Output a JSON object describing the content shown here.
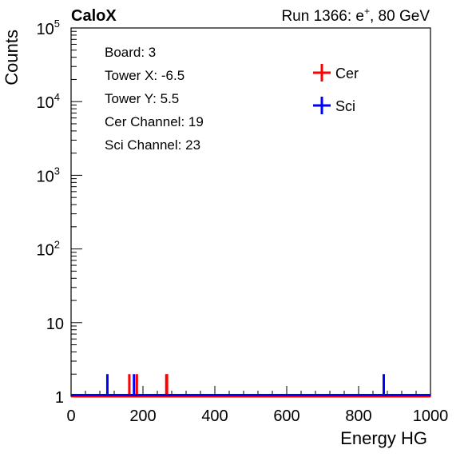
{
  "header": {
    "brand": "CaloX",
    "run_label": "Run 1366: e",
    "run_superscript": "+",
    "run_suffix": ", 80 GeV"
  },
  "info_box": {
    "lines": [
      "Board: 3",
      "Tower X: -6.5",
      "Tower Y: 5.5",
      "Cer Channel: 19",
      "Sci Channel: 23"
    ]
  },
  "chart_data": {
    "type": "bar",
    "title": "",
    "xlabel": "Energy HG",
    "ylabel": "Counts",
    "xlim": [
      0,
      1000
    ],
    "ylim": [
      1,
      100000
    ],
    "yscale": "log",
    "grid": false,
    "legend_position": "top-right",
    "x_ticks": [
      "0",
      "200",
      "400",
      "600",
      "800",
      "1000"
    ],
    "y_ticks": [
      {
        "value": 1,
        "base": "1",
        "exp": ""
      },
      {
        "value": 10,
        "base": "10",
        "exp": ""
      },
      {
        "value": 100,
        "base": "10",
        "exp": "2"
      },
      {
        "value": 1000,
        "base": "10",
        "exp": "3"
      },
      {
        "value": 10000,
        "base": "10",
        "exp": "4"
      },
      {
        "value": 100000,
        "base": "10",
        "exp": "5"
      }
    ],
    "series": [
      {
        "name": "Cer",
        "color": "#ff0000",
        "points": [
          {
            "x": 162,
            "y": 2
          },
          {
            "x": 183,
            "y": 2
          },
          {
            "x": 265,
            "y": 2
          },
          {
            "x": 267,
            "y": 2
          }
        ]
      },
      {
        "name": "Sci",
        "color": "#0000ff",
        "points": [
          {
            "x": 101,
            "y": 2
          },
          {
            "x": 175,
            "y": 2
          },
          {
            "x": 870,
            "y": 2
          }
        ]
      }
    ]
  }
}
